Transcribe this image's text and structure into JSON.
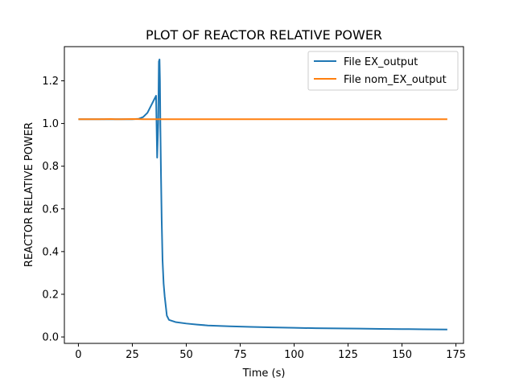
{
  "chart_data": {
    "type": "line",
    "title": "PLOT OF REACTOR RELATIVE POWER",
    "xlabel": "Time (s)",
    "ylabel": "REACTOR RELATIVE POWER",
    "xlim": [
      -6.5,
      178.5
    ],
    "ylim": [
      -0.03,
      1.36
    ],
    "xticks": [
      0,
      25,
      50,
      75,
      100,
      125,
      150,
      175
    ],
    "yticks": [
      0.0,
      0.2,
      0.4,
      0.6,
      0.8,
      1.0,
      1.2
    ],
    "xtick_labels": [
      "0",
      "25",
      "50",
      "75",
      "100",
      "125",
      "150",
      "175"
    ],
    "ytick_labels": [
      "0.0",
      "0.2",
      "0.4",
      "0.6",
      "0.8",
      "1.0",
      "1.2"
    ],
    "grid": false,
    "legend_position": "top-right",
    "series": [
      {
        "name": "File EX_output",
        "color": "#1f77b4",
        "x": [
          0,
          10,
          20,
          25,
          28,
          30,
          32,
          34,
          35,
          36,
          36.5,
          37,
          37.3,
          37.6,
          37.8,
          38,
          38.3,
          38.6,
          39,
          39.5,
          40,
          41,
          42,
          45,
          50,
          55,
          60,
          70,
          80,
          90,
          100,
          110,
          120,
          130,
          140,
          150,
          160,
          171
        ],
        "y": [
          1.02,
          1.02,
          1.02,
          1.02,
          1.022,
          1.03,
          1.05,
          1.09,
          1.11,
          1.13,
          0.84,
          1.0,
          1.29,
          1.3,
          1.2,
          0.98,
          0.75,
          0.55,
          0.36,
          0.25,
          0.19,
          0.1,
          0.08,
          0.07,
          0.063,
          0.058,
          0.054,
          0.05,
          0.047,
          0.045,
          0.043,
          0.041,
          0.04,
          0.039,
          0.038,
          0.037,
          0.036,
          0.035
        ]
      },
      {
        "name": "File nom_EX_output",
        "color": "#ff7f0e",
        "x": [
          0,
          10,
          15,
          17,
          20,
          25,
          30,
          50,
          75,
          100,
          125,
          150,
          171
        ],
        "y": [
          1.02,
          1.02,
          1.021,
          1.02,
          1.02,
          1.021,
          1.02,
          1.02,
          1.02,
          1.02,
          1.02,
          1.02,
          1.02
        ]
      }
    ]
  }
}
